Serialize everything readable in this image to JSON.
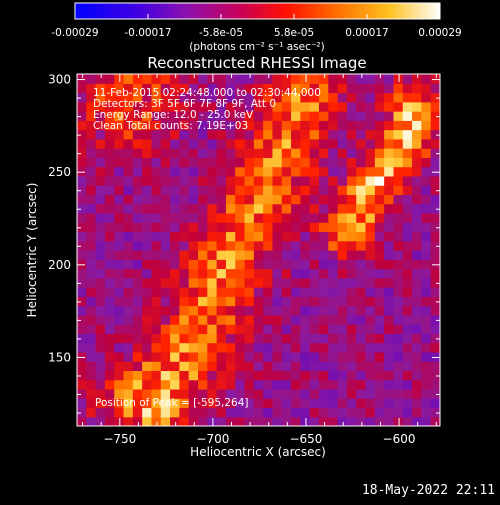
{
  "chart_data": {
    "type": "heatmap",
    "title": "Reconstructed RHESSI Image",
    "xlabel": "Heliocentric X (arcsec)",
    "ylabel": "Heliocentric Y (arcsec)",
    "xlim": [
      -773,
      -578
    ],
    "ylim": [
      113,
      303
    ],
    "xticks": [
      -750,
      -700,
      -650,
      -600
    ],
    "yticks": [
      150,
      200,
      250,
      300
    ],
    "colorbar": {
      "label": "(photons cm⁻² s⁻¹ asec⁻²)",
      "range": [
        -0.00029,
        0.00029
      ],
      "ticks": [
        "-0.00029",
        "-0.00017",
        "-5.8e-05",
        "5.8e-05",
        "0.00017",
        "0.00029"
      ]
    },
    "annotations": [
      "11-Feb-2015 02:24:48.000 to 02:30:44.000",
      "Detectors: 3F 5F 6F 7F 8F 9F, Att 0",
      "Energy Range: 12.0 - 25.0 keV",
      "Clean     Total counts: 7.19E+03"
    ],
    "peak_label": "Position of Peak = [-595,264]",
    "peak_position": [
      -595,
      264
    ],
    "colormap": "rhessi-std-gamma",
    "colormap_stops": [
      "#0000ff",
      "#5a00c8",
      "#8a1aa0",
      "#c0003c",
      "#ff2000",
      "#ff8000",
      "#ffd040",
      "#ffffff"
    ],
    "features": [
      {
        "name": "main-ridge",
        "path_x": [
          -728,
          -717,
          -705,
          -694,
          -681,
          -670,
          -660,
          -650
        ],
        "path_y": [
          127,
          145,
          170,
          198,
          222,
          247,
          272,
          290
        ],
        "peak": 0.00021
      },
      {
        "name": "right-loop",
        "path_x": [
          -628,
          -615,
          -603,
          -596,
          -592
        ],
        "path_y": [
          220,
          240,
          258,
          268,
          285
        ],
        "peak": 0.00029
      }
    ]
  },
  "footer": {
    "datetime": "18-May-2022 22:11"
  }
}
